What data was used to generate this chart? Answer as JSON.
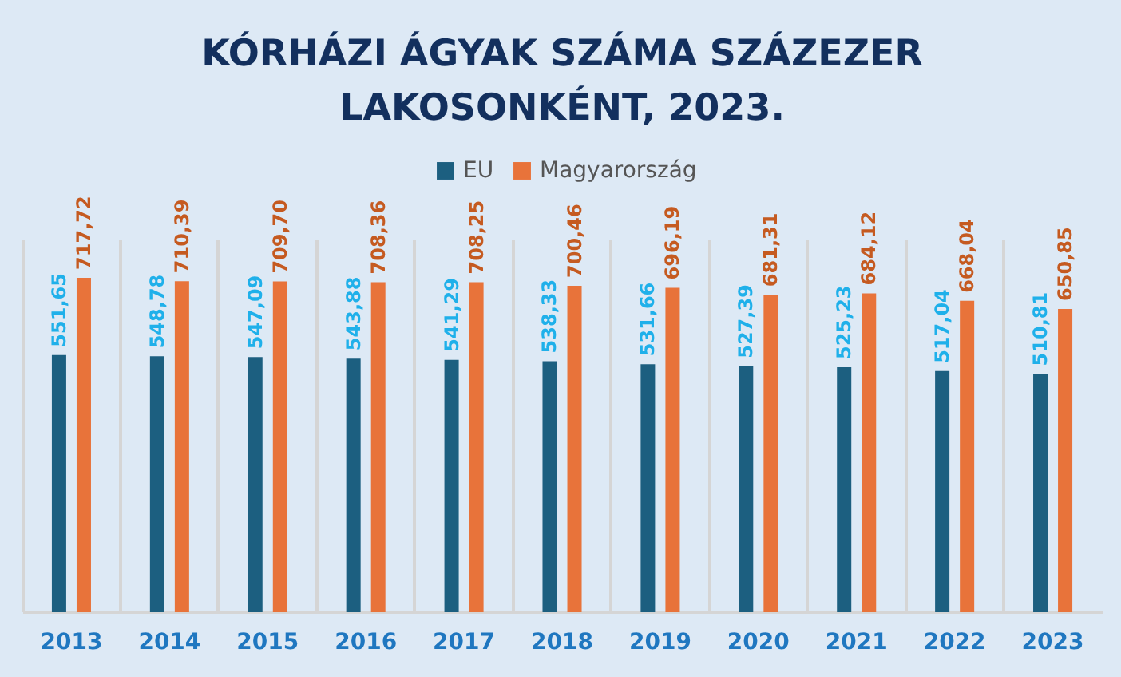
{
  "chart_data": {
    "type": "bar",
    "title": "KÓRHÁZI ÁGYAK SZÁMA SZÁZEZER LAKOSONKÉNT, 2023.",
    "categories": [
      "2013",
      "2014",
      "2015",
      "2016",
      "2017",
      "2018",
      "2019",
      "2020",
      "2021",
      "2022",
      "2023"
    ],
    "series": [
      {
        "name": "EU",
        "color": "#1c5f80",
        "values": [
          551.65,
          548.78,
          547.09,
          543.88,
          541.29,
          538.33,
          531.66,
          527.39,
          525.23,
          517.04,
          510.81
        ],
        "value_labels": [
          "551,65",
          "548,78",
          "547,09",
          "543,88",
          "541,29",
          "538,33",
          "531,66",
          "527,39",
          "525,23",
          "517,04",
          "510,81"
        ]
      },
      {
        "name": "Magyarország",
        "color": "#e8733a",
        "values": [
          717.72,
          710.39,
          709.7,
          708.36,
          708.25,
          700.46,
          696.19,
          681.31,
          684.12,
          668.04,
          650.85
        ],
        "value_labels": [
          "717,72",
          "710,39",
          "709,70",
          "708,36",
          "708,25",
          "700,46",
          "696,19",
          "681,31",
          "684,12",
          "668,04",
          "650,85"
        ]
      }
    ],
    "grid": "x",
    "legend": "top"
  }
}
